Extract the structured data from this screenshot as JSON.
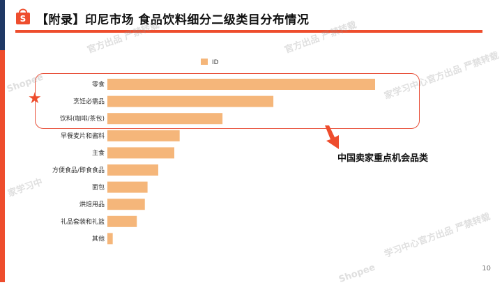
{
  "slide": {
    "title": "【附录】印尼市场 食品饮料细分二级类目分布情况",
    "callout": "中国卖家重点机会品类",
    "page_number": "10",
    "watermark_texts": [
      "Shopee",
      "官方出品 严禁转载",
      "家学习中心官方出品 严禁转载",
      "家学习中",
      "学习中心官方出品 严禁转载",
      "Shopee"
    ],
    "colors": {
      "accent": "#ee4d2d",
      "navy": "#1f3864",
      "bar": "#f5b67a"
    }
  },
  "chart_data": {
    "type": "bar",
    "orientation": "horizontal",
    "categories": [
      "零食",
      "烹饪必需品",
      "饮料(咖啡/茶包)",
      "早餐麦片和酱料",
      "主食",
      "方便食品/即食食品",
      "面包",
      "烘焙用品",
      "礼品套装和礼篮",
      "其他"
    ],
    "series": [
      {
        "name": "ID",
        "values": [
          100,
          62,
          43,
          27,
          25,
          19,
          15,
          14,
          11,
          2
        ]
      }
    ],
    "xlim": [
      0,
      100
    ],
    "legend": "top",
    "grid": false,
    "highlighted_categories": [
      "零食",
      "烹饪必需品",
      "饮料(咖啡/茶包)"
    ]
  }
}
